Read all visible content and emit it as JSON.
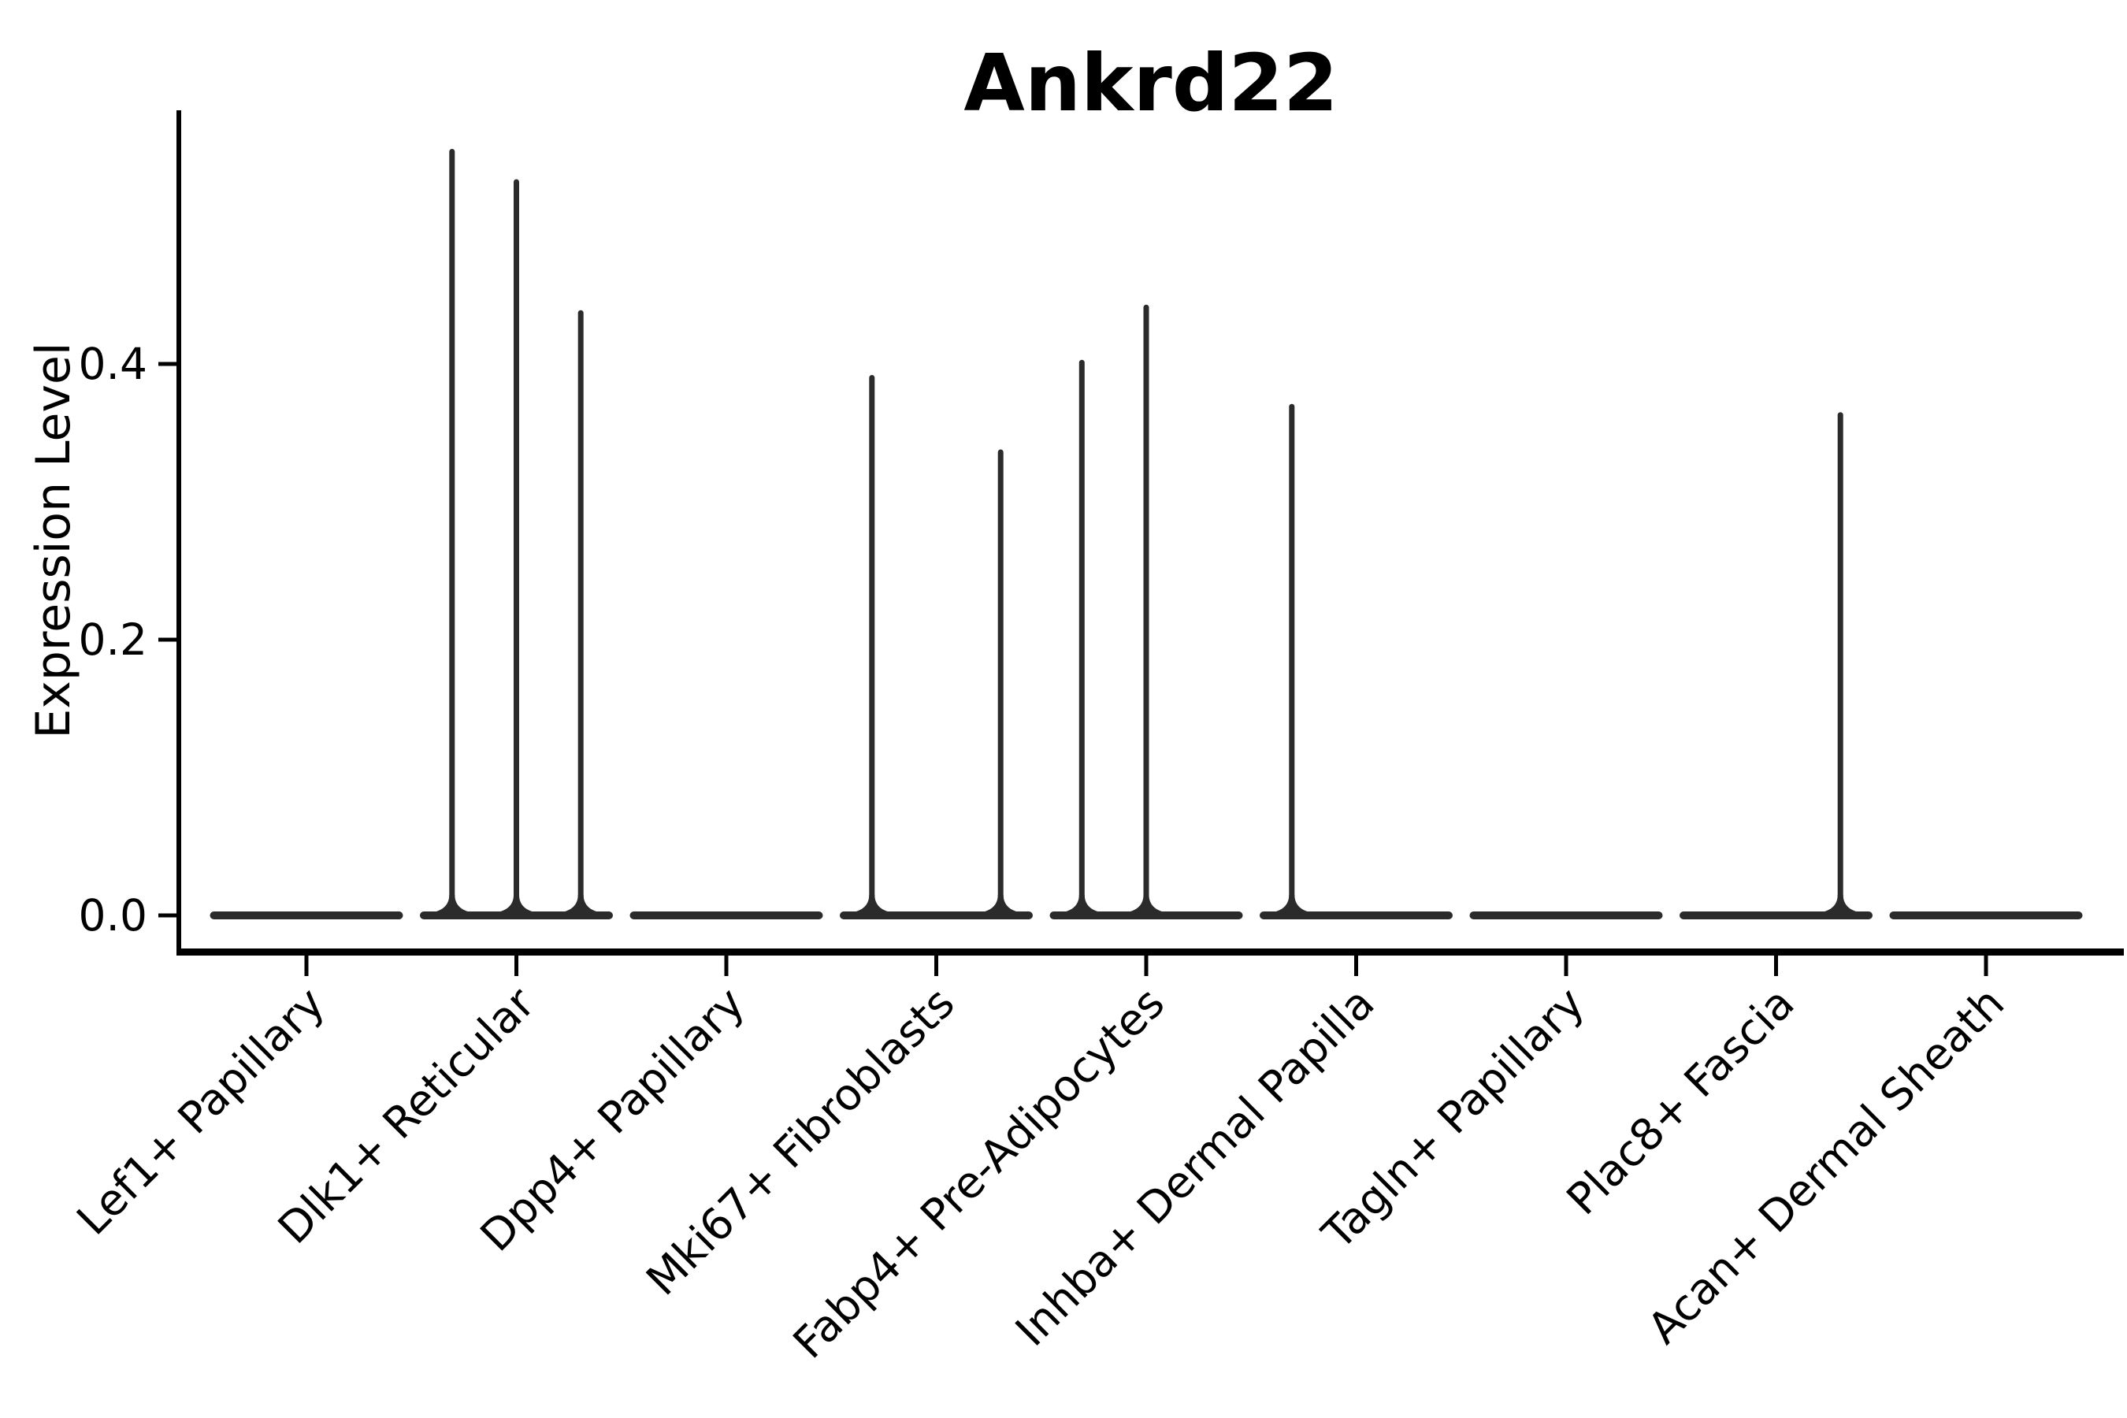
{
  "title": "Ankrd22",
  "y_axis": {
    "label": "Expression Level",
    "tick_labels": [
      "0.0",
      "0.2",
      "0.4"
    ]
  },
  "chart_data": {
    "type": "violin",
    "title": "Ankrd22",
    "ylabel": "Expression Level",
    "xlabel": "",
    "ylim": [
      -0.029,
      0.584
    ],
    "yticks": [
      0.0,
      0.2,
      0.4
    ],
    "ytick_labels": [
      "0.0",
      "0.2",
      "0.4"
    ],
    "grid": false,
    "legend": "none",
    "line_color": "#2b2b2b",
    "violins_per_category": 3,
    "categories": [
      "Lef1+ Papillary",
      "Dlk1+ Reticular",
      "Dpp4+ Papillary",
      "Mki67+ Fibroblasts",
      "Fabp4+ Pre-Adipocytes",
      "Inhba+ Dermal Papilla",
      "Tagln+ Papillary",
      "Plac8+ Fascia",
      "Acan+ Dermal Sheath"
    ],
    "groups": [
      {
        "category": "Lef1+ Papillary",
        "spikes": []
      },
      {
        "category": "Dlk1+ Reticular",
        "spikes": [
          {
            "slot": "left",
            "max": 0.556
          },
          {
            "slot": "middle",
            "max": 0.534
          },
          {
            "slot": "right",
            "max": 0.439
          }
        ]
      },
      {
        "category": "Dpp4+ Papillary",
        "spikes": []
      },
      {
        "category": "Mki67+ Fibroblasts",
        "spikes": [
          {
            "slot": "left",
            "max": 0.392
          },
          {
            "slot": "right",
            "max": 0.338
          }
        ]
      },
      {
        "category": "Fabp4+ Pre-Adipocytes",
        "spikes": [
          {
            "slot": "left",
            "max": 0.403
          },
          {
            "slot": "middle",
            "max": 0.443
          }
        ]
      },
      {
        "category": "Inhba+ Dermal Papilla",
        "spikes": [
          {
            "slot": "left",
            "max": 0.371
          }
        ]
      },
      {
        "category": "Tagln+ Papillary",
        "spikes": []
      },
      {
        "category": "Plac8+ Fascia",
        "spikes": [
          {
            "slot": "right",
            "max": 0.365
          }
        ]
      },
      {
        "category": "Acan+ Dermal Sheath",
        "spikes": []
      }
    ],
    "baseline_value": 0.0
  }
}
